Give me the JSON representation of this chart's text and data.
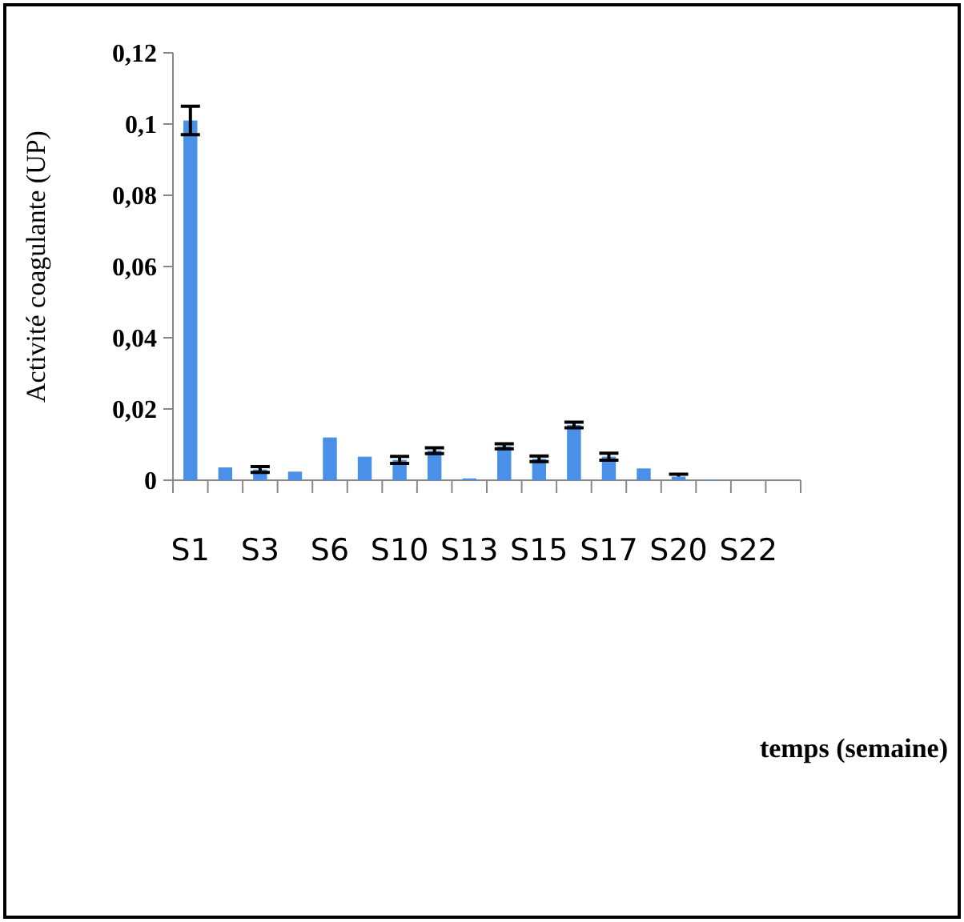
{
  "chart_data": {
    "type": "bar",
    "annotations": [
      "temps (semaine)"
    ],
    "ylabel": "Activité coagulante (UP)",
    "categories": [
      "S1",
      null,
      "S3",
      null,
      "S6",
      null,
      "S10",
      null,
      "S13",
      null,
      "S15",
      null,
      "S17",
      null,
      "S20",
      null,
      "S22",
      null
    ],
    "values": [
      0.101,
      0.0036,
      0.003,
      0.0024,
      0.012,
      0.0066,
      0.0057,
      0.0083,
      0.0005,
      0.0095,
      0.006,
      0.0155,
      0.0066,
      0.0033,
      0.001,
      0.0002,
      0,
      0
    ],
    "errors": [
      0.004,
      null,
      0.0008,
      null,
      null,
      null,
      0.001,
      0.0008,
      null,
      0.0007,
      0.0008,
      0.0008,
      0.001,
      null,
      [
        0,
        0.0007
      ],
      null,
      null,
      null
    ],
    "color": "#4a90e8",
    "ylim": [
      0,
      0.12
    ],
    "yticks": [
      0,
      {
        "value": 0.02,
        "label": "0,02"
      },
      {
        "value": 0.04,
        "label": "0,04"
      },
      {
        "value": 0.06,
        "label": "0,06"
      },
      {
        "value": 0.08,
        "label": "0,08"
      },
      {
        "value": 0.1,
        "label": "0,1"
      },
      {
        "value": 0.12,
        "label": "0,12"
      }
    ],
    "grid": false
  }
}
